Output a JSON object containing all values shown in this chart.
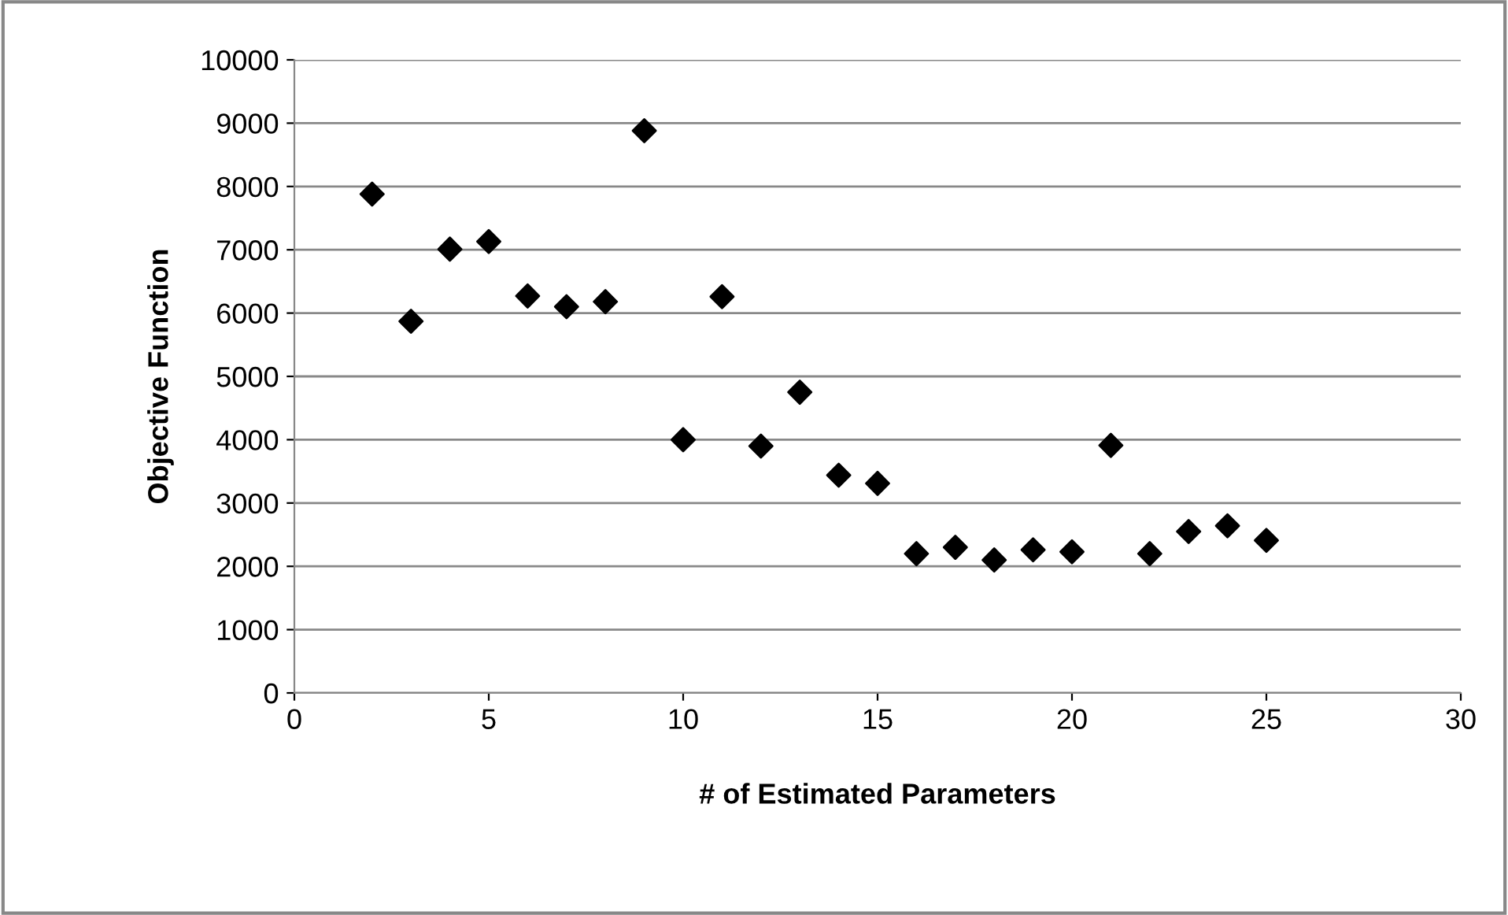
{
  "chart_data": {
    "type": "scatter",
    "xlabel": "# of Estimated Parameters",
    "ylabel": "Objective Function",
    "x": [
      2,
      3,
      4,
      5,
      6,
      7,
      8,
      9,
      10,
      11,
      12,
      13,
      14,
      15,
      16,
      17,
      18,
      19,
      20,
      21,
      22,
      23,
      24,
      25
    ],
    "series": [
      {
        "color": "#000000",
        "values": [
          7880,
          5870,
          7010,
          7130,
          6270,
          6100,
          6180,
          8880,
          4000,
          6260,
          3900,
          4750,
          3440,
          3310,
          2200,
          2300,
          2100,
          2260,
          2230,
          3910,
          2200,
          2550,
          2640,
          2410
        ]
      }
    ],
    "xlim": [
      0,
      30
    ],
    "xticks": [
      0,
      5,
      10,
      15,
      20,
      25,
      30
    ],
    "ylim": [
      0,
      10000
    ],
    "yticks": [
      0,
      1000,
      2000,
      3000,
      4000,
      5000,
      6000,
      7000,
      8000,
      9000,
      10000
    ],
    "grid": "y",
    "marker": "diamond",
    "legend": false
  }
}
